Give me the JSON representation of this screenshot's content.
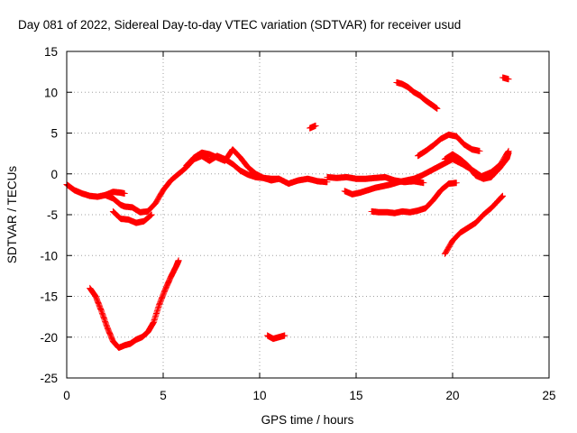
{
  "chart_data": {
    "type": "scatter",
    "title": "Day 081 of 2022, Sidereal Day-to-day VTEC variation (SDTVAR) for receiver usud",
    "xlabel": "GPS time / hours",
    "ylabel": "SDTVAR / TECUs",
    "xlim": [
      0,
      25
    ],
    "ylim": [
      -25,
      15
    ],
    "xticks": [
      0,
      5,
      10,
      15,
      20,
      25
    ],
    "yticks": [
      -25,
      -20,
      -15,
      -10,
      -5,
      0,
      5,
      10,
      15
    ],
    "grid": true,
    "marker": "plus",
    "color": "#ff0000",
    "series": [
      {
        "name": "arc-early-left",
        "x": [
          0.0,
          0.4,
          0.8,
          1.2,
          1.6,
          2.0,
          2.4,
          2.8,
          3.0
        ],
        "y": [
          -1.3,
          -2.0,
          -2.4,
          -2.7,
          -2.8,
          -2.6,
          -2.2,
          -2.3,
          -2.4
        ]
      },
      {
        "name": "arc-early-right",
        "x": [
          2.0,
          2.4,
          2.8,
          3.0,
          3.4,
          3.8,
          4.2,
          4.6,
          5.0,
          5.4,
          5.8,
          6.2,
          6.6,
          7.0,
          7.4,
          7.8,
          8.2,
          8.6,
          9.0,
          9.4,
          9.8,
          10.2,
          10.6,
          11.0
        ],
        "y": [
          -2.6,
          -3.0,
          -3.8,
          -4.0,
          -4.1,
          -4.7,
          -4.6,
          -3.6,
          -2.0,
          -0.8,
          0.0,
          0.8,
          1.8,
          2.2,
          1.6,
          2.2,
          1.8,
          1.2,
          0.4,
          -0.1,
          -0.4,
          -0.5,
          -0.6,
          -0.6
        ]
      },
      {
        "name": "arc-dip",
        "x": [
          2.4,
          2.8,
          3.2,
          3.6,
          4.0,
          4.4
        ],
        "y": [
          -4.6,
          -5.5,
          -5.6,
          -6.0,
          -5.8,
          -5.0
        ]
      },
      {
        "name": "arc-peak",
        "x": [
          6.2,
          6.6,
          7.0,
          7.4,
          7.8,
          8.2,
          8.6,
          9.0,
          9.4,
          9.8,
          10.2,
          10.6,
          11.0,
          11.5,
          12.0,
          12.5,
          13.0,
          13.5
        ],
        "y": [
          1.0,
          2.0,
          2.6,
          2.4,
          2.0,
          1.6,
          3.0,
          2.0,
          0.8,
          0.0,
          -0.5,
          -0.8,
          -0.6,
          -1.2,
          -0.8,
          -0.6,
          -0.9,
          -1.0
        ]
      },
      {
        "name": "arc-deep-dip",
        "x": [
          1.2,
          1.5,
          1.8,
          2.1,
          2.4,
          2.7,
          3.0,
          3.3,
          3.6,
          3.9,
          4.2,
          4.5,
          4.8,
          5.1,
          5.4,
          5.7,
          5.8
        ],
        "y": [
          -14.0,
          -15.0,
          -16.8,
          -18.8,
          -20.5,
          -21.3,
          -21.0,
          -20.8,
          -20.3,
          -20.0,
          -19.4,
          -18.2,
          -16.0,
          -14.2,
          -12.6,
          -11.2,
          -10.6
        ]
      },
      {
        "name": "arc-small-noon",
        "x": [
          10.4,
          10.7,
          11.0,
          11.3
        ],
        "y": [
          -19.8,
          -20.2,
          -20.0,
          -19.8
        ]
      },
      {
        "name": "arc-small-mid",
        "x": [
          12.6,
          12.9
        ],
        "y": [
          5.6,
          5.9
        ]
      },
      {
        "name": "arc-afternoon-flat",
        "x": [
          13.5,
          14.0,
          14.5,
          15.0,
          15.5,
          16.0,
          16.5,
          17.0,
          17.5,
          18.0,
          18.5
        ],
        "y": [
          -0.4,
          -0.5,
          -0.4,
          -0.6,
          -0.6,
          -0.5,
          -0.4,
          -0.8,
          -1.0,
          -0.9,
          -1.1
        ]
      },
      {
        "name": "arc-afternoon-lower",
        "x": [
          14.4,
          14.8,
          15.2,
          15.6,
          16.0,
          16.4,
          16.8,
          17.2,
          17.6,
          18.0,
          18.4,
          18.8,
          19.2,
          19.6,
          20.0,
          20.5,
          21.0,
          21.5,
          22.0,
          22.5,
          22.9
        ],
        "y": [
          -2.1,
          -2.5,
          -2.3,
          -2.0,
          -1.7,
          -1.5,
          -1.3,
          -1.0,
          -0.8,
          -0.6,
          -0.2,
          0.3,
          0.8,
          1.3,
          1.8,
          1.2,
          0.5,
          -0.3,
          0.2,
          1.2,
          2.8
        ]
      },
      {
        "name": "arc-afternoon-bottom",
        "x": [
          15.8,
          16.2,
          16.6,
          17.0,
          17.4,
          17.8,
          18.2,
          18.6,
          19.0,
          19.4,
          19.8,
          20.2
        ],
        "y": [
          -4.6,
          -4.7,
          -4.7,
          -4.8,
          -4.6,
          -4.7,
          -4.5,
          -4.2,
          -3.2,
          -2.0,
          -1.2,
          -1.1
        ]
      },
      {
        "name": "arc-evening-rise",
        "x": [
          18.2,
          18.6,
          19.0,
          19.4,
          19.8,
          20.2,
          20.6,
          21.0,
          21.4
        ],
        "y": [
          2.2,
          2.8,
          3.5,
          4.3,
          4.8,
          4.6,
          3.6,
          3.0,
          2.8
        ]
      },
      {
        "name": "arc-evening-hump",
        "x": [
          19.6,
          20.0,
          20.4,
          20.8,
          21.2,
          21.6,
          22.0,
          22.4,
          22.8,
          22.9
        ],
        "y": [
          1.8,
          2.4,
          1.8,
          1.0,
          -0.2,
          -0.6,
          -0.4,
          0.6,
          1.8,
          2.6
        ]
      },
      {
        "name": "arc-high",
        "x": [
          17.1,
          17.4,
          17.7,
          18.0,
          18.3,
          18.6,
          18.9,
          19.2
        ],
        "y": [
          11.2,
          11.0,
          10.6,
          10.0,
          9.6,
          9.0,
          8.5,
          8.0
        ]
      },
      {
        "name": "arc-late-spike",
        "x": [
          22.6,
          22.9
        ],
        "y": [
          11.8,
          11.6
        ]
      },
      {
        "name": "arc-late-rise",
        "x": [
          19.6,
          20.0,
          20.4,
          20.8,
          21.2,
          21.6,
          22.0,
          22.4,
          22.6
        ],
        "y": [
          -9.8,
          -8.2,
          -7.2,
          -6.6,
          -6.0,
          -5.0,
          -4.2,
          -3.2,
          -2.7
        ]
      }
    ]
  }
}
